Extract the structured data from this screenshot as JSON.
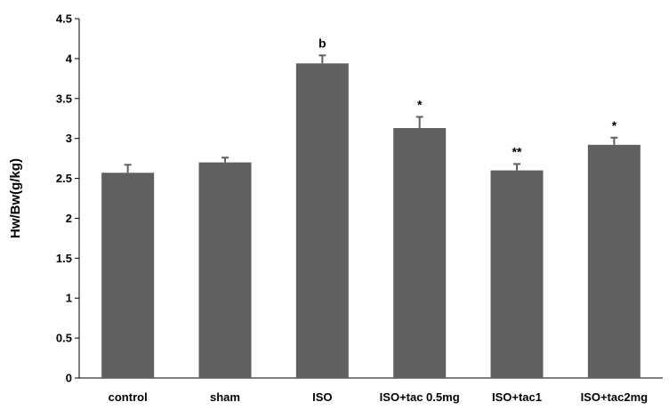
{
  "chart_data": {
    "type": "bar",
    "title": "",
    "xlabel": "",
    "ylabel": "Hw/Bw(g/kg)",
    "ylim": [
      0,
      4.5
    ],
    "yticks": [
      "0",
      "0.5",
      "1",
      "1.5",
      "2",
      "2.5",
      "3",
      "3.5",
      "4",
      "4.5"
    ],
    "grid": false,
    "legend": "none",
    "bar_color": "#606060",
    "categories": [
      "control",
      "sham",
      "ISO",
      "ISO+tac 0.5mg",
      "ISO+tac1",
      "ISO+tac2mg"
    ],
    "values": [
      2.57,
      2.7,
      3.94,
      3.13,
      2.6,
      2.92
    ],
    "errors": [
      0.1,
      0.06,
      0.1,
      0.14,
      0.08,
      0.09
    ],
    "annotations": [
      "",
      "",
      "b",
      "*",
      "**",
      "*"
    ]
  }
}
